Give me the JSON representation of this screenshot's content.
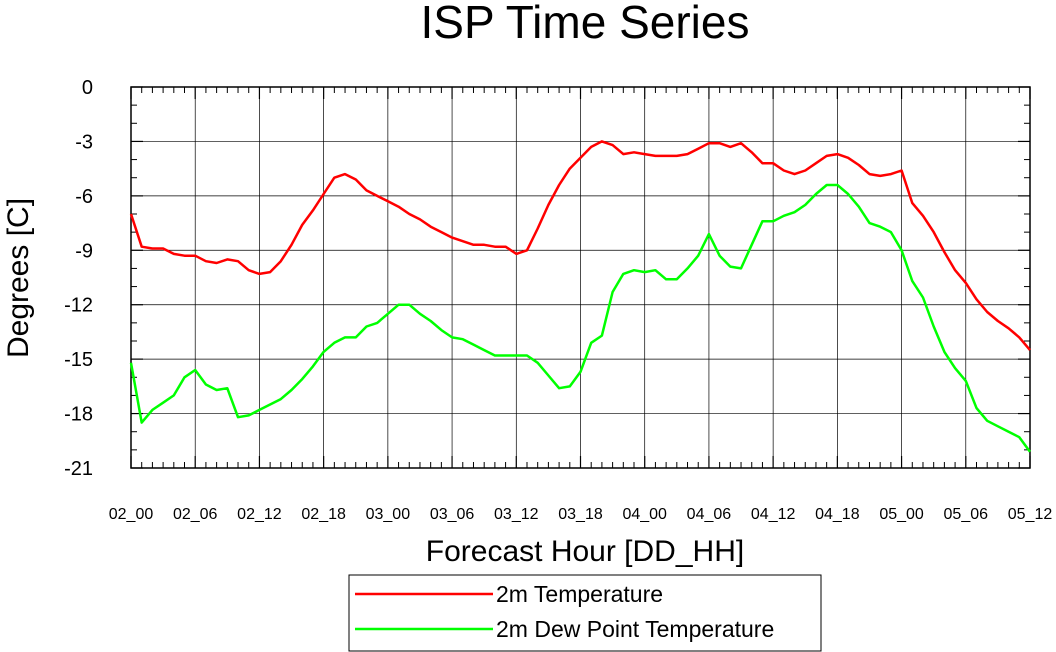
{
  "chart_data": {
    "type": "line",
    "title": "ISP Time Series",
    "xlabel": "Forecast Hour [DD_HH]",
    "ylabel": "Degrees [C]",
    "ylim": [
      -21,
      0
    ],
    "yticks": [
      "0",
      "-3",
      "-6",
      "-9",
      "-12",
      "-15",
      "-18",
      "-21"
    ],
    "xlim": [
      0,
      84
    ],
    "xticks": [
      "02_00",
      "02_06",
      "02_12",
      "02_18",
      "03_00",
      "03_06",
      "03_12",
      "03_18",
      "04_00",
      "04_06",
      "04_12",
      "04_18",
      "05_00",
      "05_06",
      "05_12"
    ],
    "grid": true,
    "legend_position": "bottom",
    "series": [
      {
        "name": "2m Temperature",
        "color": "#ff0000",
        "x": [
          0,
          1,
          2,
          3,
          4,
          5,
          6,
          7,
          8,
          9,
          10,
          11,
          12,
          13,
          14,
          15,
          16,
          17,
          18,
          19,
          20,
          21,
          22,
          23,
          24,
          25,
          26,
          27,
          28,
          29,
          30,
          31,
          32,
          33,
          34,
          35,
          36,
          37,
          38,
          39,
          40,
          41,
          42,
          43,
          44,
          45,
          46,
          47,
          48,
          49,
          50,
          51,
          52,
          53,
          54,
          55,
          56,
          57,
          58,
          59,
          60,
          61,
          62,
          63,
          64,
          65,
          66,
          67,
          68,
          69,
          70,
          71,
          72,
          73,
          74,
          75,
          76,
          77,
          78,
          79,
          80,
          81,
          82,
          83,
          84
        ],
        "values": [
          -7.0,
          -8.8,
          -8.9,
          -8.9,
          -9.2,
          -9.3,
          -9.3,
          -9.6,
          -9.7,
          -9.5,
          -9.6,
          -10.1,
          -10.3,
          -10.2,
          -9.6,
          -8.7,
          -7.6,
          -6.8,
          -5.9,
          -5.0,
          -4.8,
          -5.1,
          -5.7,
          -6.0,
          -6.3,
          -6.6,
          -7.0,
          -7.3,
          -7.7,
          -8.0,
          -8.3,
          -8.5,
          -8.7,
          -8.7,
          -8.8,
          -8.8,
          -9.2,
          -9.0,
          -7.8,
          -6.5,
          -5.4,
          -4.5,
          -3.9,
          -3.3,
          -3.0,
          -3.2,
          -3.7,
          -3.6,
          -3.7,
          -3.8,
          -3.8,
          -3.8,
          -3.7,
          -3.4,
          -3.1,
          -3.1,
          -3.3,
          -3.1,
          -3.6,
          -4.2,
          -4.2,
          -4.6,
          -4.8,
          -4.6,
          -4.2,
          -3.8,
          -3.7,
          -3.9,
          -4.3,
          -4.8,
          -4.9,
          -4.8,
          -4.6,
          -6.4,
          -7.1,
          -8.0,
          -9.1,
          -10.1,
          -10.8,
          -11.7,
          -12.4,
          -12.9,
          -13.3,
          -13.8,
          -14.5
        ]
      },
      {
        "name": "2m Dew Point Temperature",
        "color": "#00ff00",
        "x": [
          0,
          1,
          2,
          3,
          4,
          5,
          6,
          7,
          8,
          9,
          10,
          11,
          12,
          13,
          14,
          15,
          16,
          17,
          18,
          19,
          20,
          21,
          22,
          23,
          24,
          25,
          26,
          27,
          28,
          29,
          30,
          31,
          32,
          33,
          34,
          35,
          36,
          37,
          38,
          39,
          40,
          41,
          42,
          43,
          44,
          45,
          46,
          47,
          48,
          49,
          50,
          51,
          52,
          53,
          54,
          55,
          56,
          57,
          58,
          59,
          60,
          61,
          62,
          63,
          64,
          65,
          66,
          67,
          68,
          69,
          70,
          71,
          72,
          73,
          74,
          75,
          76,
          77,
          78,
          79,
          80,
          81,
          82,
          83,
          84
        ],
        "values": [
          -15.2,
          -18.5,
          -17.8,
          -17.4,
          -17.0,
          -16.0,
          -15.6,
          -16.4,
          -16.7,
          -16.6,
          -18.2,
          -18.1,
          -17.8,
          -17.5,
          -17.2,
          -16.7,
          -16.1,
          -15.4,
          -14.6,
          -14.1,
          -13.8,
          -13.8,
          -13.2,
          -13.0,
          -12.5,
          -12.0,
          -12.0,
          -12.5,
          -12.9,
          -13.4,
          -13.8,
          -13.9,
          -14.2,
          -14.5,
          -14.8,
          -14.8,
          -14.8,
          -14.8,
          -15.2,
          -15.9,
          -16.6,
          -16.5,
          -15.7,
          -14.1,
          -13.7,
          -11.3,
          -10.3,
          -10.1,
          -10.2,
          -10.1,
          -10.6,
          -10.6,
          -10.0,
          -9.3,
          -8.1,
          -9.3,
          -9.9,
          -10.0,
          -8.7,
          -7.4,
          -7.4,
          -7.1,
          -6.9,
          -6.5,
          -5.9,
          -5.4,
          -5.4,
          -5.9,
          -6.6,
          -7.5,
          -7.7,
          -8.0,
          -9.0,
          -10.7,
          -11.6,
          -13.2,
          -14.6,
          -15.5,
          -16.2,
          -17.7,
          -18.4,
          -18.7,
          -19.0,
          -19.3,
          -20.1
        ]
      }
    ]
  }
}
